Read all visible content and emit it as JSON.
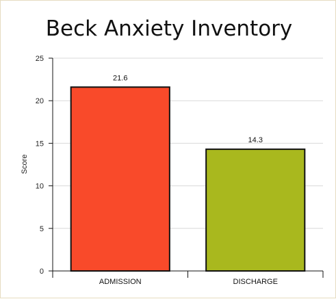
{
  "chart_data": {
    "type": "bar",
    "title": "Beck Anxiety Inventory",
    "xlabel": "",
    "ylabel": "Score",
    "categories": [
      "ADMISSION",
      "DISCHARGE"
    ],
    "values": [
      21.6,
      14.3
    ],
    "data_labels": [
      "21.6",
      "14.3"
    ],
    "colors": [
      "#f94a2a",
      "#a9b81e"
    ],
    "ylim": [
      0,
      25
    ],
    "yticks": [
      0,
      5,
      10,
      15,
      20,
      25
    ],
    "grid": true,
    "legend": "none"
  }
}
